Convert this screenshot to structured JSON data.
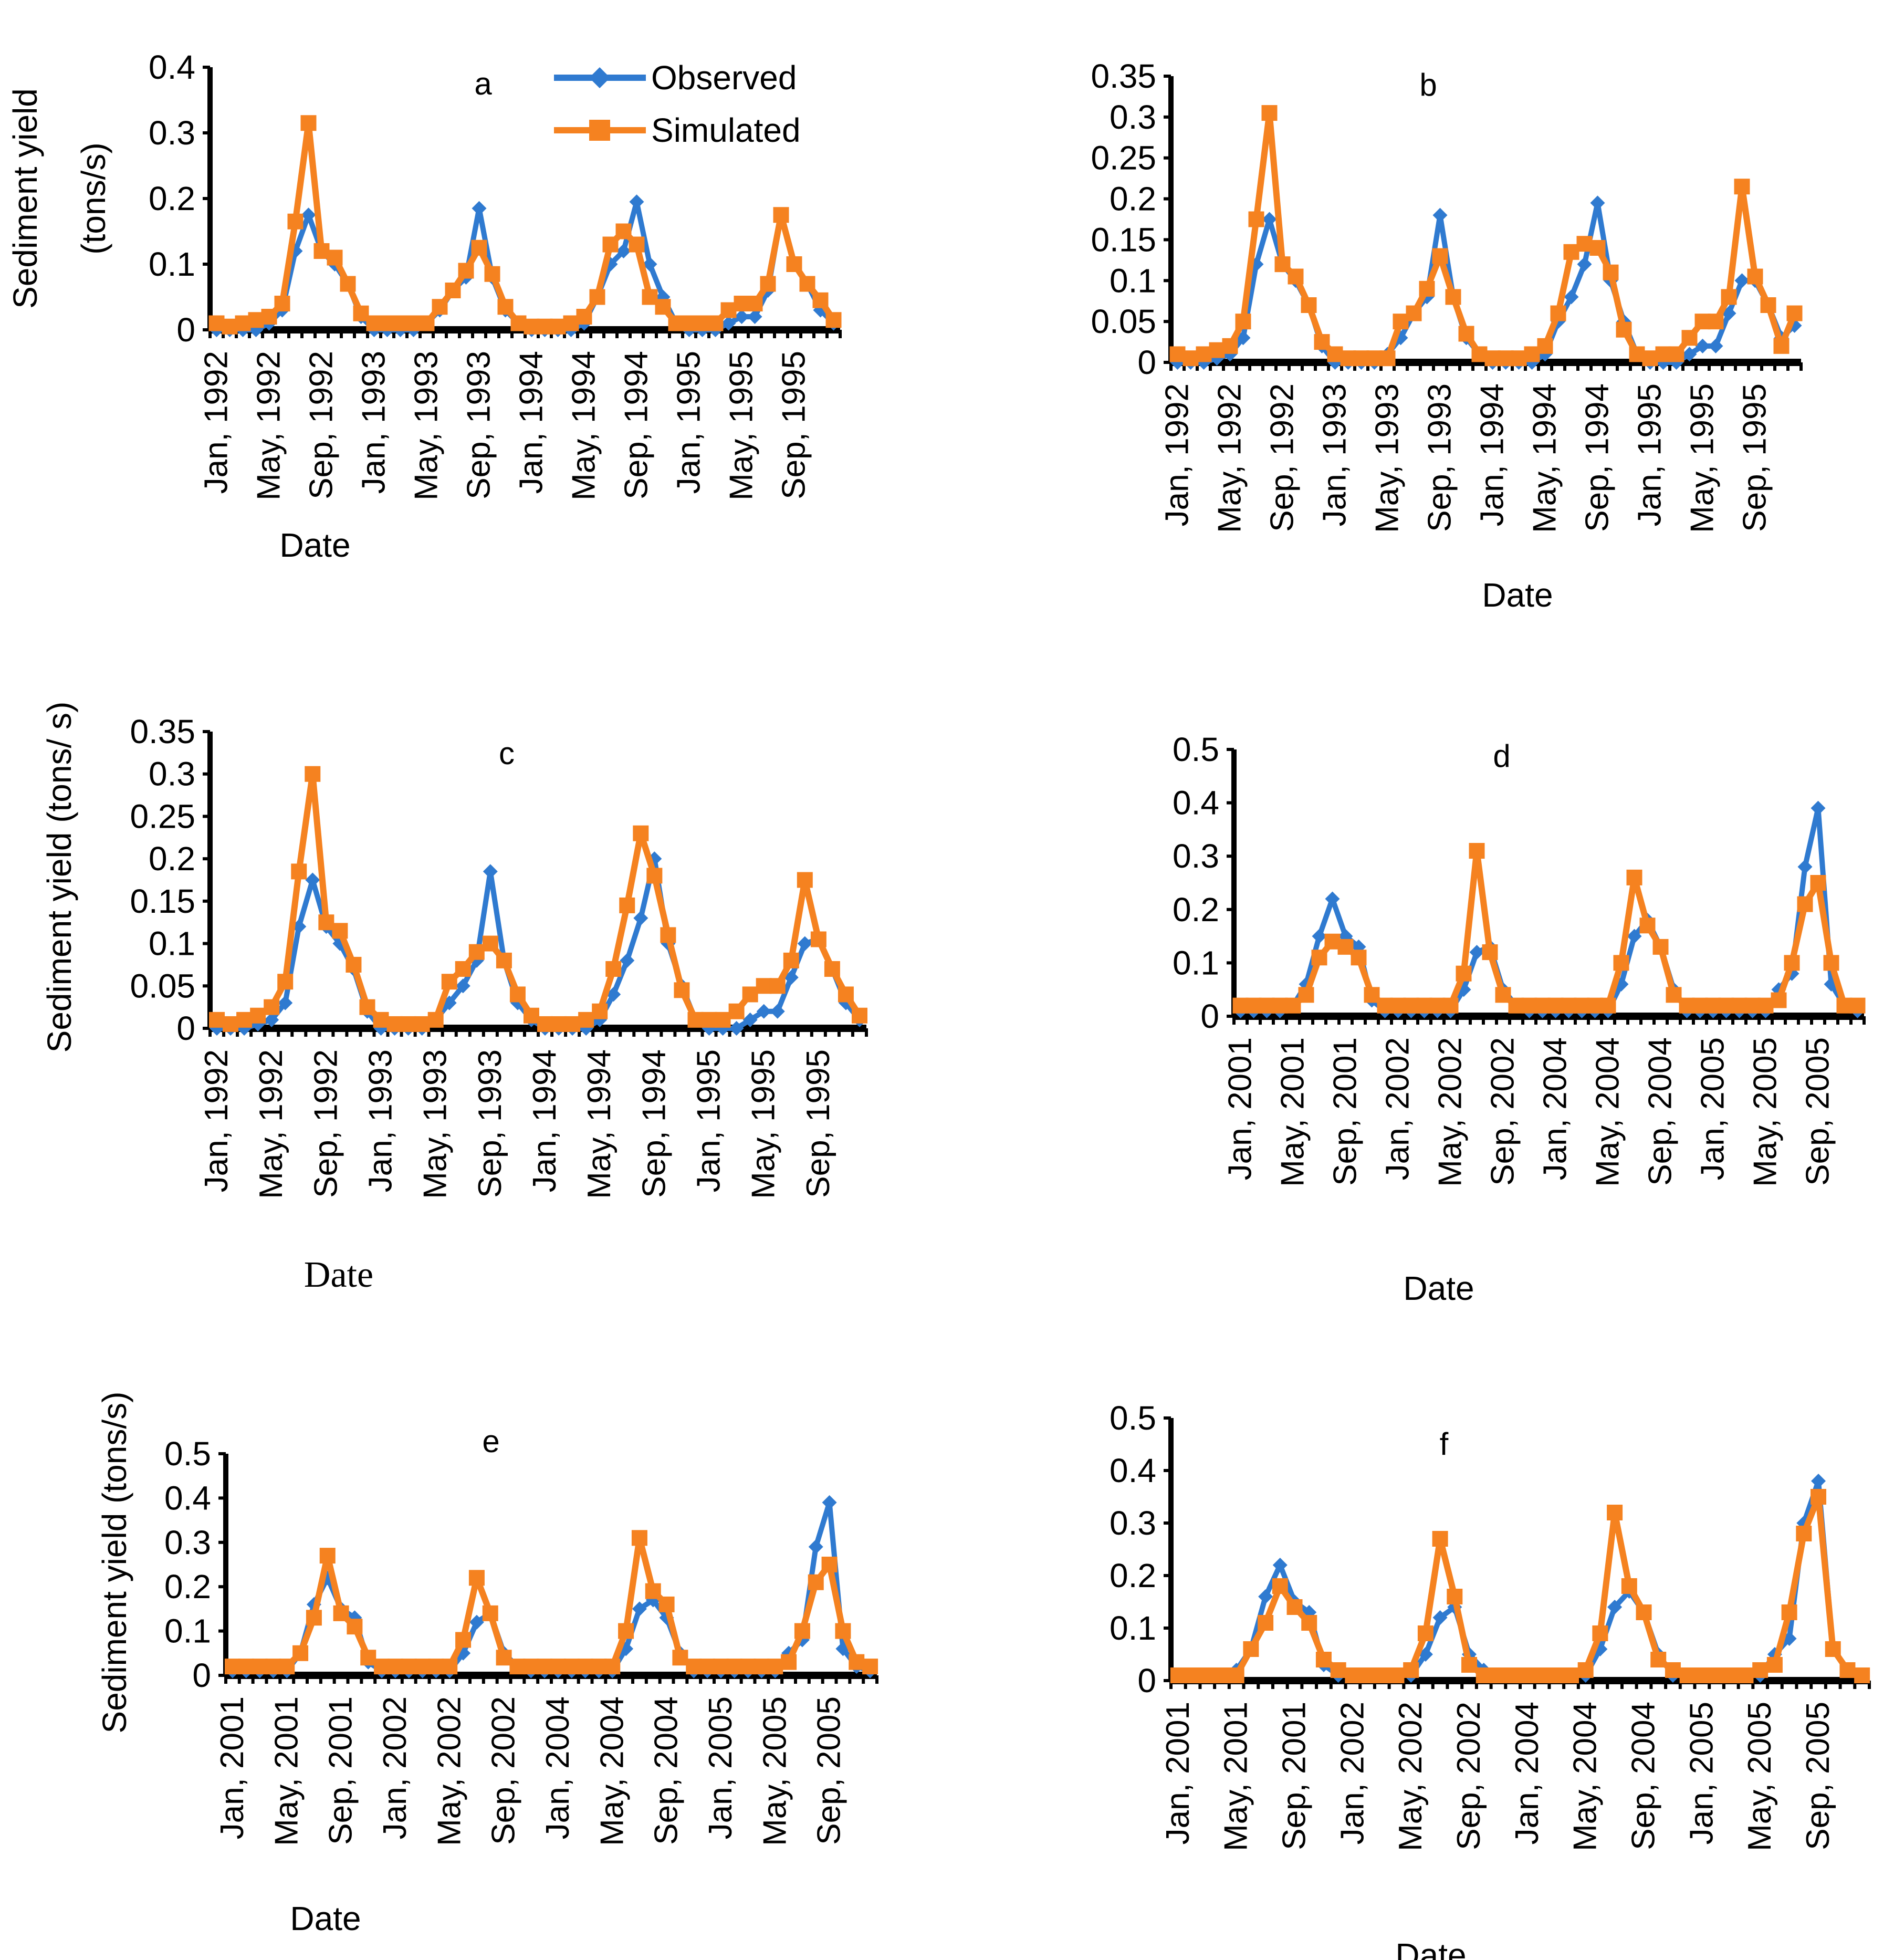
{
  "colors": {
    "observed": "#2f7ad0",
    "simulated": "#f58220",
    "axis": "#000000"
  },
  "legend": {
    "observed": "Observed",
    "simulated": "Simulated"
  },
  "chart_data": [
    {
      "type": "line",
      "title": "a",
      "xlabel": "Date",
      "ylabel": [
        "Sediment yield",
        "(tons/s)"
      ],
      "ylim": [
        0,
        0.4
      ],
      "yticks": [
        "0",
        "0.1",
        "0.2",
        "0.3",
        "0.4"
      ],
      "ytick_values": [
        0,
        0.1,
        0.2,
        0.3,
        0.4
      ],
      "xtick_labels": [
        "Jan, 1992",
        "May, 1992",
        "Sep, 1992",
        "Jan, 1993",
        "May, 1993",
        "Sep, 1993",
        "Jan, 1994",
        "May, 1994",
        "Sep, 1994",
        "Jan, 1995",
        "May, 1995",
        "Sep, 1995"
      ],
      "n": 48,
      "series": [
        {
          "name": "Observed",
          "values": [
            0.0,
            0.0,
            0.0,
            0.0,
            0.01,
            0.03,
            0.12,
            0.175,
            0.12,
            0.1,
            0.07,
            0.02,
            0.0,
            0.0,
            0.0,
            0.0,
            0.01,
            0.03,
            0.06,
            0.08,
            0.185,
            0.08,
            0.03,
            0.01,
            0.0,
            0.0,
            0.0,
            0.0,
            0.01,
            0.05,
            0.1,
            0.12,
            0.195,
            0.1,
            0.05,
            0.01,
            0.0,
            0.0,
            0.0,
            0.01,
            0.02,
            0.02,
            0.06,
            0.175,
            0.1,
            0.07,
            0.03,
            0.01
          ]
        },
        {
          "name": "Simulated",
          "values": [
            0.01,
            0.005,
            0.01,
            0.015,
            0.02,
            0.04,
            0.165,
            0.315,
            0.12,
            0.11,
            0.07,
            0.025,
            0.01,
            0.01,
            0.01,
            0.01,
            0.01,
            0.035,
            0.06,
            0.09,
            0.125,
            0.085,
            0.035,
            0.01,
            0.005,
            0.005,
            0.005,
            0.01,
            0.02,
            0.05,
            0.13,
            0.15,
            0.13,
            0.05,
            0.035,
            0.01,
            0.01,
            0.01,
            0.01,
            0.03,
            0.04,
            0.04,
            0.07,
            0.175,
            0.1,
            0.07,
            0.045,
            0.015
          ]
        }
      ]
    },
    {
      "type": "line",
      "title": "b",
      "xlabel": "Date",
      "ylabel": [],
      "ylim": [
        0,
        0.35
      ],
      "yticks": [
        "0",
        "0.05",
        "0.1",
        "0.15",
        "0.2",
        "0.25",
        "0.3",
        "0.35"
      ],
      "ytick_values": [
        0,
        0.05,
        0.1,
        0.15,
        0.2,
        0.25,
        0.3,
        0.35
      ],
      "xtick_labels": [
        "Jan, 1992",
        "May, 1992",
        "Sep, 1992",
        "Jan, 1993",
        "May, 1993",
        "Sep, 1993",
        "Jan, 1994",
        "May, 1994",
        "Sep, 1994",
        "Jan, 1995",
        "May, 1995",
        "Sep, 1995"
      ],
      "n": 48,
      "series": [
        {
          "name": "Observed",
          "values": [
            0.0,
            0.0,
            0.0,
            0.005,
            0.01,
            0.03,
            0.12,
            0.175,
            0.12,
            0.1,
            0.07,
            0.02,
            0.0,
            0.0,
            0.0,
            0.0,
            0.01,
            0.03,
            0.06,
            0.08,
            0.18,
            0.08,
            0.03,
            0.01,
            0.0,
            0.0,
            0.0,
            0.0,
            0.01,
            0.05,
            0.08,
            0.12,
            0.195,
            0.1,
            0.05,
            0.01,
            0.0,
            0.0,
            0.0,
            0.01,
            0.02,
            0.02,
            0.06,
            0.1,
            0.1,
            0.07,
            0.03,
            0.045
          ]
        },
        {
          "name": "Simulated",
          "values": [
            0.01,
            0.005,
            0.01,
            0.015,
            0.02,
            0.05,
            0.175,
            0.305,
            0.12,
            0.105,
            0.07,
            0.025,
            0.01,
            0.005,
            0.005,
            0.005,
            0.005,
            0.05,
            0.06,
            0.09,
            0.13,
            0.08,
            0.035,
            0.01,
            0.005,
            0.005,
            0.005,
            0.01,
            0.02,
            0.06,
            0.135,
            0.145,
            0.14,
            0.11,
            0.04,
            0.01,
            0.005,
            0.01,
            0.01,
            0.03,
            0.05,
            0.05,
            0.08,
            0.215,
            0.105,
            0.07,
            0.02,
            0.06
          ]
        }
      ]
    },
    {
      "type": "line",
      "title": "c",
      "xlabel": "Date",
      "ylabel": [
        "Sediment yield (tons/ s)"
      ],
      "ylim": [
        0,
        0.35
      ],
      "yticks": [
        "0",
        "0.05",
        "0.1",
        "0.15",
        "0.2",
        "0.25",
        "0.3",
        "0.35"
      ],
      "ytick_values": [
        0,
        0.05,
        0.1,
        0.15,
        0.2,
        0.25,
        0.3,
        0.35
      ],
      "xtick_labels": [
        "Jan, 1992",
        "May, 1992",
        "Sep, 1992",
        "Jan, 1993",
        "May, 1993",
        "Sep, 1993",
        "Jan, 1994",
        "May, 1994",
        "Sep, 1994",
        "Jan, 1995",
        "May, 1995",
        "Sep, 1995"
      ],
      "n": 48,
      "series": [
        {
          "name": "Observed",
          "values": [
            0.0,
            0.0,
            0.0,
            0.005,
            0.01,
            0.03,
            0.12,
            0.175,
            0.12,
            0.1,
            0.07,
            0.02,
            0.0,
            0.0,
            0.0,
            0.0,
            0.01,
            0.03,
            0.05,
            0.08,
            0.185,
            0.08,
            0.03,
            0.01,
            0.0,
            0.0,
            0.0,
            0.0,
            0.01,
            0.04,
            0.08,
            0.13,
            0.2,
            0.1,
            0.05,
            0.01,
            0.0,
            0.0,
            0.0,
            0.01,
            0.02,
            0.02,
            0.06,
            0.1,
            0.105,
            0.07,
            0.03,
            0.01
          ]
        },
        {
          "name": "Simulated",
          "values": [
            0.01,
            0.005,
            0.01,
            0.015,
            0.025,
            0.055,
            0.185,
            0.3,
            0.125,
            0.115,
            0.075,
            0.025,
            0.01,
            0.005,
            0.005,
            0.005,
            0.01,
            0.055,
            0.07,
            0.09,
            0.1,
            0.08,
            0.04,
            0.015,
            0.005,
            0.005,
            0.005,
            0.01,
            0.02,
            0.07,
            0.145,
            0.23,
            0.18,
            0.11,
            0.045,
            0.01,
            0.01,
            0.01,
            0.02,
            0.04,
            0.05,
            0.05,
            0.08,
            0.175,
            0.105,
            0.07,
            0.04,
            0.015
          ]
        }
      ]
    },
    {
      "type": "line",
      "title": "d",
      "xlabel": "Date",
      "ylabel": [],
      "ylim": [
        0,
        0.5
      ],
      "yticks": [
        "0",
        "0.1",
        "0.2",
        "0.3",
        "0.4",
        "0.5"
      ],
      "ytick_values": [
        0,
        0.1,
        0.2,
        0.3,
        0.4,
        0.5
      ],
      "xtick_labels": [
        "Jan, 2001",
        "May, 2001",
        "Sep, 2001",
        "Jan, 2002",
        "May, 2002",
        "Sep, 2002",
        "Jan, 2004",
        "May, 2004",
        "Sep, 2004",
        "Jan, 2005",
        "May, 2005",
        "Sep, 2005"
      ],
      "n": 48,
      "series": [
        {
          "name": "Observed",
          "values": [
            0.01,
            0.01,
            0.01,
            0.01,
            0.02,
            0.06,
            0.15,
            0.22,
            0.15,
            0.13,
            0.03,
            0.01,
            0.01,
            0.01,
            0.01,
            0.01,
            0.01,
            0.05,
            0.12,
            0.13,
            0.05,
            0.02,
            0.01,
            0.01,
            0.01,
            0.01,
            0.01,
            0.01,
            0.01,
            0.06,
            0.15,
            0.18,
            0.13,
            0.05,
            0.01,
            0.01,
            0.01,
            0.01,
            0.01,
            0.01,
            0.01,
            0.05,
            0.08,
            0.28,
            0.39,
            0.06,
            0.02,
            0.01
          ]
        },
        {
          "name": "Simulated",
          "values": [
            0.02,
            0.02,
            0.02,
            0.02,
            0.02,
            0.04,
            0.11,
            0.14,
            0.13,
            0.11,
            0.04,
            0.02,
            0.02,
            0.02,
            0.02,
            0.02,
            0.02,
            0.08,
            0.31,
            0.12,
            0.04,
            0.02,
            0.02,
            0.02,
            0.02,
            0.02,
            0.02,
            0.02,
            0.02,
            0.1,
            0.26,
            0.17,
            0.13,
            0.04,
            0.02,
            0.02,
            0.02,
            0.02,
            0.02,
            0.02,
            0.02,
            0.03,
            0.1,
            0.21,
            0.25,
            0.1,
            0.02,
            0.02
          ]
        }
      ]
    },
    {
      "type": "line",
      "title": "e",
      "xlabel": "Date",
      "ylabel": [
        "Sediment yield (tons/s)"
      ],
      "ylim": [
        0,
        0.5
      ],
      "yticks": [
        "0",
        "0.1",
        "0.2",
        "0.3",
        "0.4",
        "0.5"
      ],
      "ytick_values": [
        0,
        0.1,
        0.2,
        0.3,
        0.4,
        0.5
      ],
      "xtick_labels": [
        "Jan, 2001",
        "May, 2001",
        "Sep, 2001",
        "Jan, 2002",
        "May, 2002",
        "Sep, 2002",
        "Jan, 2004",
        "May, 2004",
        "Sep, 2004",
        "Jan, 2005",
        "May, 2005",
        "Sep, 2005"
      ],
      "n": 48,
      "series": [
        {
          "name": "Observed",
          "values": [
            0.01,
            0.01,
            0.01,
            0.01,
            0.01,
            0.05,
            0.16,
            0.22,
            0.15,
            0.13,
            0.03,
            0.01,
            0.01,
            0.01,
            0.01,
            0.01,
            0.01,
            0.05,
            0.12,
            0.14,
            0.05,
            0.02,
            0.01,
            0.01,
            0.01,
            0.01,
            0.01,
            0.01,
            0.01,
            0.06,
            0.15,
            0.17,
            0.13,
            0.05,
            0.01,
            0.01,
            0.01,
            0.01,
            0.01,
            0.01,
            0.01,
            0.05,
            0.08,
            0.29,
            0.39,
            0.06,
            0.02,
            0.01
          ]
        },
        {
          "name": "Simulated",
          "values": [
            0.02,
            0.02,
            0.02,
            0.02,
            0.02,
            0.05,
            0.13,
            0.27,
            0.14,
            0.11,
            0.04,
            0.02,
            0.02,
            0.02,
            0.02,
            0.02,
            0.02,
            0.08,
            0.22,
            0.14,
            0.04,
            0.02,
            0.02,
            0.02,
            0.02,
            0.02,
            0.02,
            0.02,
            0.02,
            0.1,
            0.31,
            0.19,
            0.16,
            0.04,
            0.02,
            0.02,
            0.02,
            0.02,
            0.02,
            0.02,
            0.02,
            0.03,
            0.1,
            0.21,
            0.25,
            0.1,
            0.03,
            0.02
          ]
        }
      ]
    },
    {
      "type": "line",
      "title": "f",
      "xlabel": "Date",
      "ylabel": [],
      "ylim": [
        0,
        0.5
      ],
      "yticks": [
        "0",
        "0.1",
        "0.2",
        "0.3",
        "0.4",
        "0.5"
      ],
      "ytick_values": [
        0,
        0.1,
        0.2,
        0.3,
        0.4,
        0.5
      ],
      "xtick_labels": [
        "Jan, 2001",
        "May, 2001",
        "Sep, 2001",
        "Jan, 2002",
        "May, 2002",
        "Sep, 2002",
        "Jan, 2004",
        "May, 2004",
        "Sep, 2004",
        "Jan, 2005",
        "May, 2005",
        "Sep, 2005"
      ],
      "n": 48,
      "series": [
        {
          "name": "Observed",
          "values": [
            0.01,
            0.01,
            0.01,
            0.01,
            0.02,
            0.06,
            0.16,
            0.22,
            0.15,
            0.13,
            0.03,
            0.01,
            0.01,
            0.01,
            0.01,
            0.01,
            0.01,
            0.05,
            0.12,
            0.14,
            0.05,
            0.02,
            0.01,
            0.01,
            0.01,
            0.01,
            0.01,
            0.01,
            0.01,
            0.06,
            0.14,
            0.17,
            0.13,
            0.05,
            0.01,
            0.01,
            0.01,
            0.01,
            0.01,
            0.01,
            0.01,
            0.05,
            0.08,
            0.3,
            0.38,
            0.06,
            0.02,
            0.01
          ]
        },
        {
          "name": "Simulated",
          "values": [
            0.01,
            0.01,
            0.01,
            0.01,
            0.01,
            0.06,
            0.11,
            0.18,
            0.14,
            0.11,
            0.04,
            0.02,
            0.01,
            0.01,
            0.01,
            0.01,
            0.02,
            0.09,
            0.27,
            0.16,
            0.03,
            0.01,
            0.01,
            0.01,
            0.01,
            0.01,
            0.01,
            0.01,
            0.02,
            0.09,
            0.32,
            0.18,
            0.13,
            0.04,
            0.02,
            0.01,
            0.01,
            0.01,
            0.01,
            0.01,
            0.02,
            0.03,
            0.13,
            0.28,
            0.35,
            0.06,
            0.02,
            0.01
          ]
        }
      ]
    }
  ]
}
